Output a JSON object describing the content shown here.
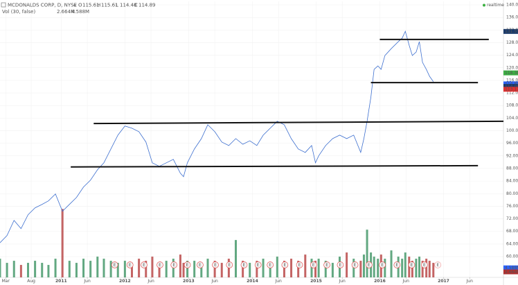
{
  "chart_data": {
    "type": "line",
    "symbol": "MCDONALDS CORP, D, NYSE",
    "status": "realtime",
    "ohlc": [
      {
        "label": "O",
        "value": 115.61
      },
      {
        "label": "H",
        "value": 115.61
      },
      {
        "label": "L",
        "value": 114.48
      },
      {
        "label": "C",
        "value": 114.89
      }
    ],
    "volume_title": "Vol (30, false)",
    "x": [
      2010.04,
      2010.15,
      2010.26,
      2010.37,
      2010.48,
      2010.59,
      2010.7,
      2010.8,
      2010.91,
      2011.02,
      2011.13,
      2011.24,
      2011.35,
      2011.46,
      2011.57,
      2011.67,
      2011.78,
      2011.89,
      2012.0,
      2012.11,
      2012.22,
      2012.33,
      2012.43,
      2012.54,
      2012.65,
      2012.76,
      2012.87,
      2012.92,
      2012.98,
      2013.09,
      2013.2,
      2013.3,
      2013.41,
      2013.52,
      2013.63,
      2013.74,
      2013.85,
      2013.96,
      2014.07,
      2014.17,
      2014.28,
      2014.39,
      2014.5,
      2014.61,
      2014.72,
      2014.83,
      2014.93,
      2014.99,
      2015.04,
      2015.15,
      2015.26,
      2015.37,
      2015.48,
      2015.59,
      2015.7,
      2015.75,
      2015.8,
      2015.86,
      2015.91,
      2015.97,
      2016.02,
      2016.08,
      2016.18,
      2016.29,
      2016.35,
      2016.4,
      2016.46,
      2016.51,
      2016.57,
      2016.62,
      2016.67,
      2016.73,
      2016.78,
      2016.84
    ],
    "series": [
      {
        "name": "MCDONALDS CORP",
        "color": "#3d6fcf",
        "values": [
          64.4,
          66.7,
          71.5,
          68.9,
          73.3,
          75.5,
          76.6,
          77.7,
          79.9,
          74.4,
          76.6,
          78.8,
          82.1,
          84.3,
          87.6,
          89.8,
          94.2,
          98.6,
          101.5,
          100.8,
          99.7,
          96.4,
          89.8,
          88.7,
          89.8,
          90.9,
          86.5,
          85.4,
          89.8,
          94.2,
          97.5,
          101.9,
          99.7,
          96.4,
          95.3,
          97.5,
          95.7,
          96.8,
          95.3,
          98.6,
          100.8,
          103.0,
          101.9,
          97.5,
          94.2,
          93.1,
          95.3,
          89.8,
          92.0,
          95.3,
          97.5,
          98.6,
          97.5,
          98.6,
          93.1,
          97.5,
          103.0,
          110.7,
          119.5,
          120.6,
          119.5,
          123.9,
          126.1,
          128.3,
          129.4,
          131.6,
          127.2,
          123.9,
          125.0,
          128.3,
          121.7,
          119.5,
          117.3,
          115.6
        ]
      },
      {
        "name": "Vol",
        "type": "volume",
        "axis": "y2",
        "up_color": "#2e8b57",
        "down_color": "#b03030",
        "values": [
          9,
          7,
          8,
          6,
          7,
          8,
          7,
          6,
          9,
          33,
          8,
          7,
          9,
          8,
          10,
          9,
          8,
          7,
          8,
          7,
          9,
          8,
          10,
          7,
          8,
          9,
          11,
          7,
          8,
          8,
          7,
          9,
          8,
          7,
          9,
          18,
          8,
          7,
          8,
          9,
          7,
          10,
          8,
          9,
          8,
          11,
          9,
          8,
          9,
          8,
          7,
          10,
          12,
          9,
          8,
          11,
          23,
          12,
          10,
          9,
          11,
          9,
          13,
          10,
          9,
          12,
          10,
          8,
          9,
          10,
          8,
          9,
          8,
          7
        ]
      }
    ],
    "xlim": [
      2010.04,
      2017.94
    ],
    "ylim": [
      53.4,
      141.1
    ],
    "y2lim": [
      0,
      133
    ],
    "xticks": [
      {
        "value": 2010.13,
        "label": "Mar"
      },
      {
        "value": 2010.53,
        "label": "Aug"
      },
      2011,
      {
        "value": 2011.41,
        "label": "Jun"
      },
      2012,
      {
        "value": 2012.41,
        "label": "Jun"
      },
      2013,
      {
        "value": 2013.41,
        "label": "Jun"
      },
      2014,
      {
        "value": 2014.41,
        "label": "Jun"
      },
      2015,
      {
        "value": 2015.41,
        "label": "Jun"
      },
      2016,
      {
        "value": 2016.41,
        "label": "Jun"
      },
      2017,
      {
        "value": 2017.41,
        "label": "Jun"
      }
    ],
    "yticks": [
      {
        "value": 60,
        "label": "60.00"
      },
      {
        "value": 64,
        "label": "64.00"
      },
      {
        "value": 68,
        "label": "68.00"
      },
      {
        "value": 72,
        "label": "72.00"
      },
      {
        "value": 76,
        "label": "76.00"
      },
      {
        "value": 80,
        "label": "80.00"
      },
      {
        "value": 84,
        "label": "84.00"
      },
      {
        "value": 88,
        "label": "88.00"
      },
      {
        "value": 92,
        "label": "92.00"
      },
      {
        "value": 96,
        "label": "96.00"
      },
      {
        "value": 100,
        "label": "100.00"
      },
      {
        "value": 104,
        "label": "104.00"
      },
      {
        "value": 108,
        "label": "108.00"
      },
      {
        "value": 112,
        "label": "112.00"
      },
      {
        "value": 116,
        "label": "116.00"
      },
      {
        "value": 120,
        "label": "120.00"
      },
      {
        "value": 124,
        "label": "124.00"
      },
      {
        "value": 128,
        "label": "128.00"
      },
      {
        "value": 132,
        "label": "132.00"
      },
      {
        "value": 136,
        "label": "136.00"
      },
      {
        "value": 140,
        "label": "140.00"
      }
    ],
    "grid": true,
    "price_markers": [
      {
        "value": 131.55,
        "color": "#1a3a6a"
      },
      {
        "value": 118.38,
        "color": "#3cb043"
      },
      {
        "value": 114.89,
        "color": "#2962ff"
      },
      {
        "value": 114.09,
        "color": "#1a3a6a"
      },
      {
        "value": 113.17,
        "color": "#e03030"
      }
    ],
    "volume_markers": [
      {
        "value": 4.588,
        "label": "4.588M",
        "color": "#2962ff"
      },
      {
        "value": 2.664,
        "label": "2.664M",
        "color": "#b03030"
      }
    ],
    "trendlines": [
      {
        "x": [
          2011.15,
          2017.54
        ],
        "y": [
          88.5,
          88.9
        ]
      },
      {
        "x": [
          2011.51,
          2017.94
        ],
        "y": [
          102.3,
          103.0
        ]
      },
      {
        "x": [
          2015.86,
          2017.54
        ],
        "y": [
          115.3,
          115.3
        ]
      },
      {
        "x": [
          2016.0,
          2017.71
        ],
        "y": [
          129.0,
          129.0
        ]
      }
    ],
    "events": {
      "label": "E",
      "x": [
        2011.84,
        2012.08,
        2012.3,
        2012.55,
        2012.77,
        2012.98,
        2013.18,
        2013.42,
        2013.64,
        2013.87,
        2014.09,
        2014.28,
        2014.51,
        2014.74,
        2014.96,
        2015.17,
        2015.38,
        2015.61,
        2015.83,
        2016.04,
        2016.27,
        2016.5,
        2016.7
      ],
      "upcoming_x": [
        2016.91
      ]
    }
  }
}
